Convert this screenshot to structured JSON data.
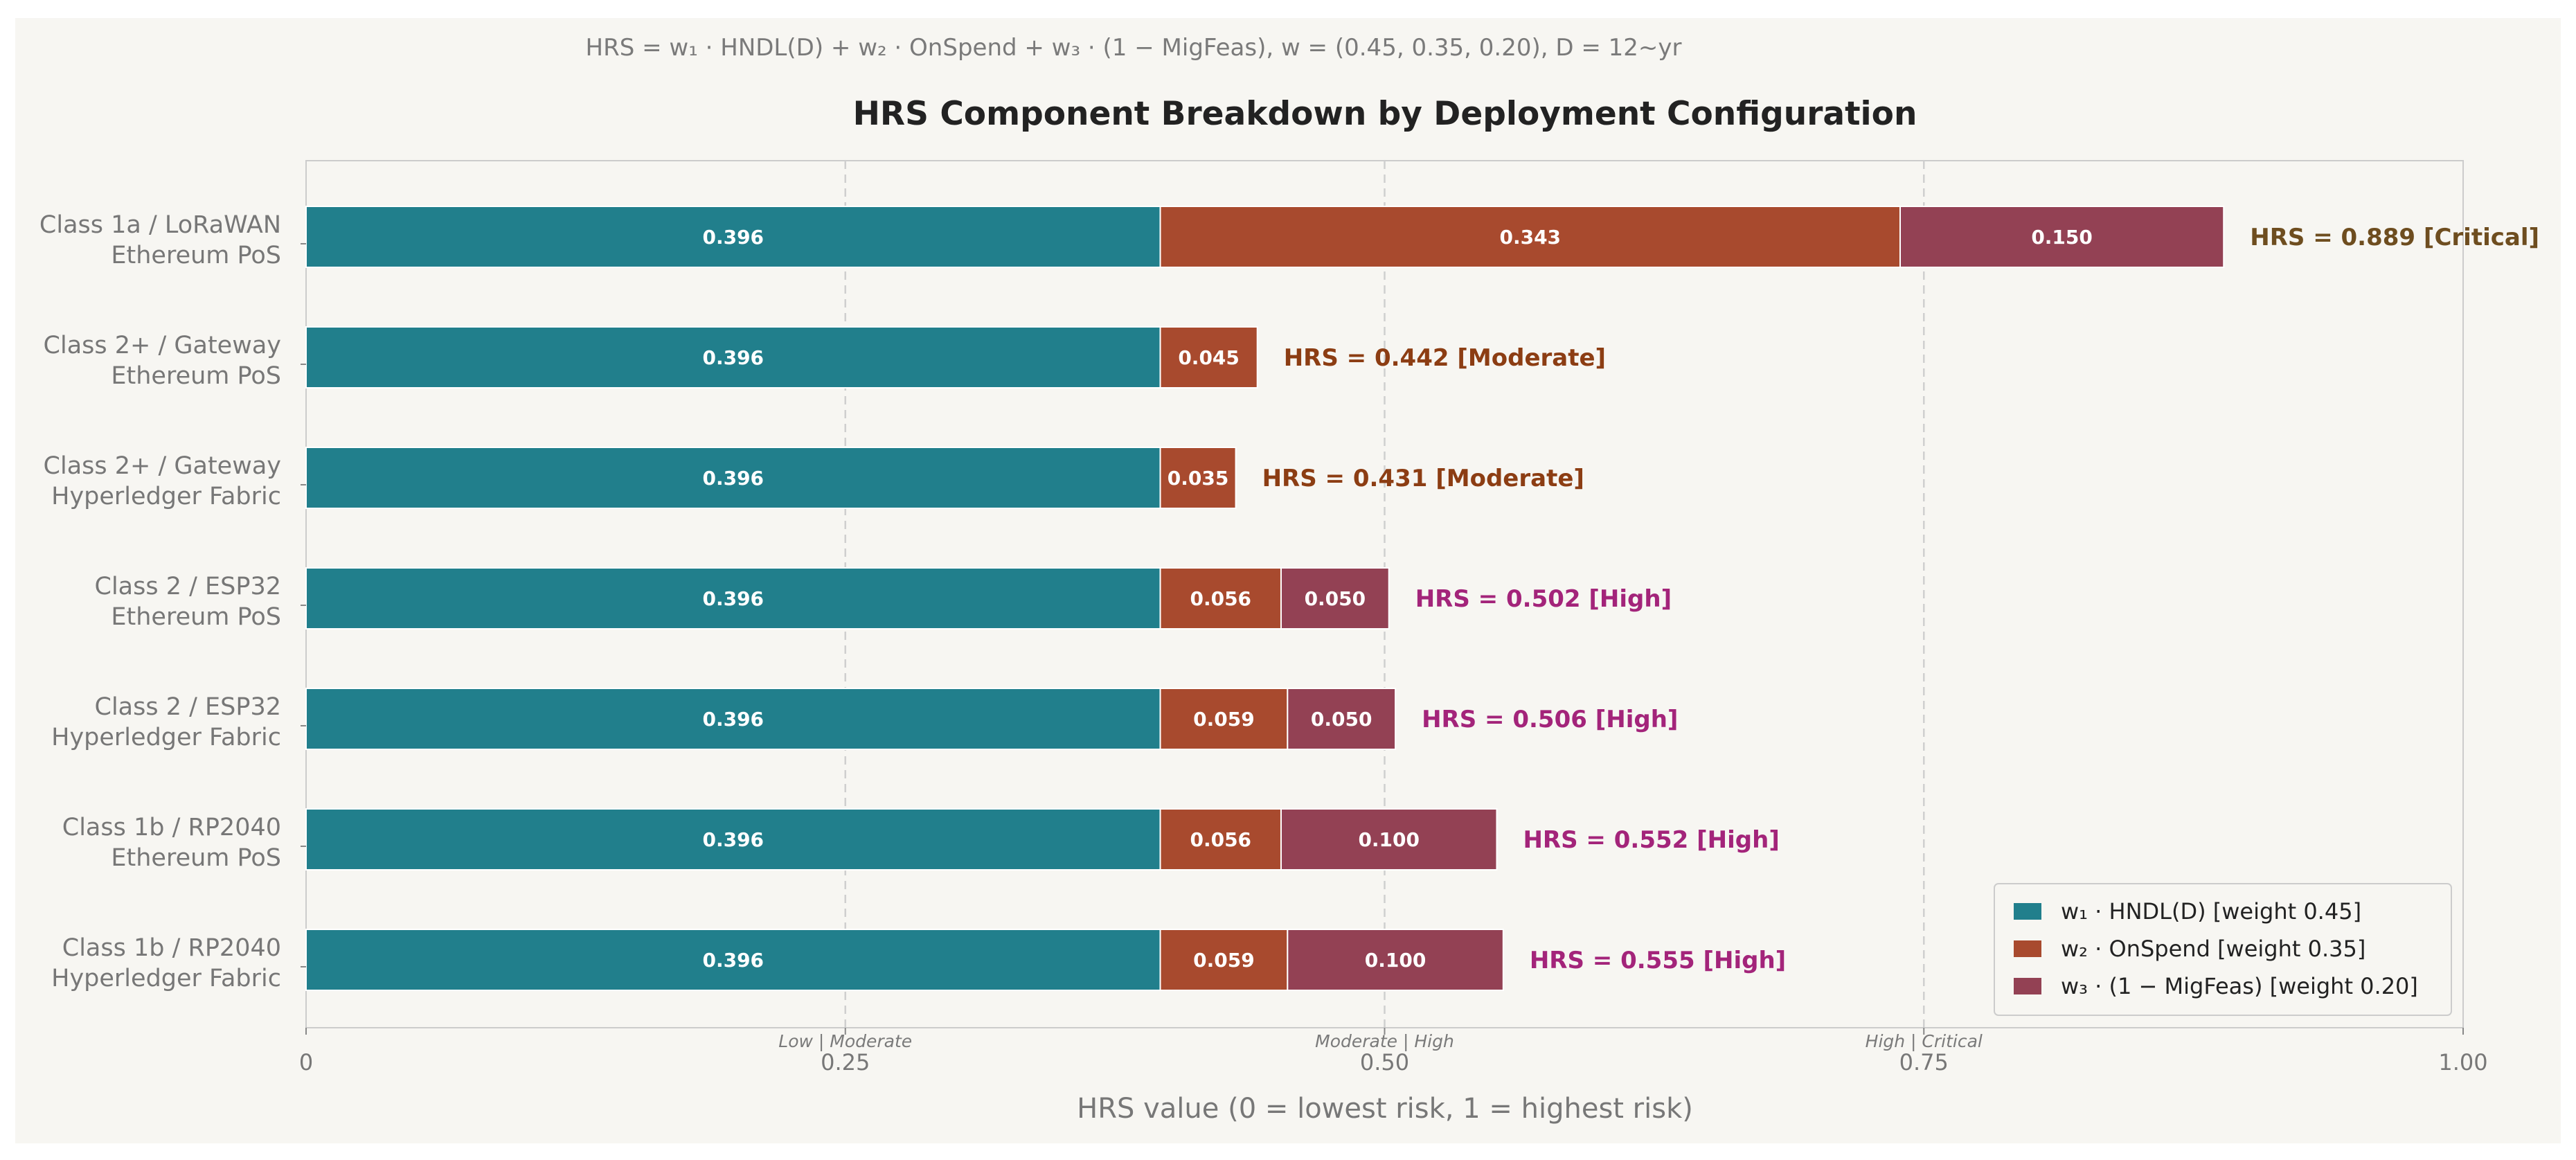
{
  "chart_data": {
    "type": "bar",
    "orientation": "horizontal",
    "stacked": true,
    "formula": "HRS = w₁ · HNDL(D) + w₂ · OnSpend + w₃ · (1 − MigFeas),  w = (0.45, 0.35, 0.20),  D = 12~yr",
    "title": "HRS Component Breakdown by Deployment Configuration",
    "xlabel": "HRS value  (0 = lowest risk, 1 = highest risk)",
    "ylabel": "",
    "xlim": [
      0,
      1
    ],
    "xticks": [
      {
        "value": 0,
        "label": "0"
      },
      {
        "value": 0.25,
        "label": "0.25"
      },
      {
        "value": 0.5,
        "label": "0.50"
      },
      {
        "value": 0.75,
        "label": "0.75"
      },
      {
        "value": 1,
        "label": "1.00"
      }
    ],
    "thresholds": [
      {
        "value": 0.25,
        "label": "Low | Moderate"
      },
      {
        "value": 0.5,
        "label": "Moderate | High"
      },
      {
        "value": 0.75,
        "label": "High | Critical"
      }
    ],
    "grid": false,
    "legend_position": "bottom-right",
    "categories": [
      {
        "line1": "Class 1a / LoRaWAN",
        "line2": "Ethereum PoS"
      },
      {
        "line1": "Class 2+ / Gateway",
        "line2": "Ethereum PoS"
      },
      {
        "line1": "Class 2+ / Gateway",
        "line2": "Hyperledger Fabric"
      },
      {
        "line1": "Class 2 / ESP32",
        "line2": "Ethereum PoS"
      },
      {
        "line1": "Class 2 / ESP32",
        "line2": "Hyperledger Fabric"
      },
      {
        "line1": "Class 1b / RP2040",
        "line2": "Ethereum PoS"
      },
      {
        "line1": "Class 1b / RP2040",
        "line2": "Hyperledger Fabric"
      }
    ],
    "series": [
      {
        "name": "w₁ · HNDL(D)  [weight 0.45]",
        "color": "#217f8c",
        "values": [
          0.396,
          0.396,
          0.396,
          0.396,
          0.396,
          0.396,
          0.396
        ],
        "labels": [
          "0.396",
          "0.396",
          "0.396",
          "0.396",
          "0.396",
          "0.396",
          "0.396"
        ]
      },
      {
        "name": "w₂ · OnSpend  [weight 0.35]",
        "color": "#a84a2e",
        "values": [
          0.343,
          0.045,
          0.035,
          0.056,
          0.059,
          0.056,
          0.059
        ],
        "labels": [
          "0.343",
          "0.045",
          "0.035",
          "0.056",
          "0.059",
          "0.056",
          "0.059"
        ]
      },
      {
        "name": "w₃ · (1 − MigFeas)  [weight 0.20]",
        "color": "#934154",
        "values": [
          0.15,
          0,
          0,
          0.05,
          0.05,
          0.1,
          0.1
        ],
        "labels": [
          "0.150",
          "",
          "",
          "0.050",
          "0.050",
          "0.100",
          "0.100"
        ]
      }
    ],
    "totals": [
      {
        "text": "HRS = 0.889  [Critical]",
        "value": 0.889,
        "color": "#6e4d1f"
      },
      {
        "text": "HRS = 0.442  [Moderate]",
        "value": 0.442,
        "color": "#8c3d13"
      },
      {
        "text": "HRS = 0.431  [Moderate]",
        "value": 0.431,
        "color": "#8c3d13"
      },
      {
        "text": "HRS = 0.502  [High]",
        "value": 0.502,
        "color": "#a3247a"
      },
      {
        "text": "HRS = 0.506  [High]",
        "value": 0.506,
        "color": "#a3247a"
      },
      {
        "text": "HRS = 0.552  [High]",
        "value": 0.552,
        "color": "#a3247a"
      },
      {
        "text": "HRS = 0.555  [High]",
        "value": 0.555,
        "color": "#a3247a"
      }
    ]
  }
}
